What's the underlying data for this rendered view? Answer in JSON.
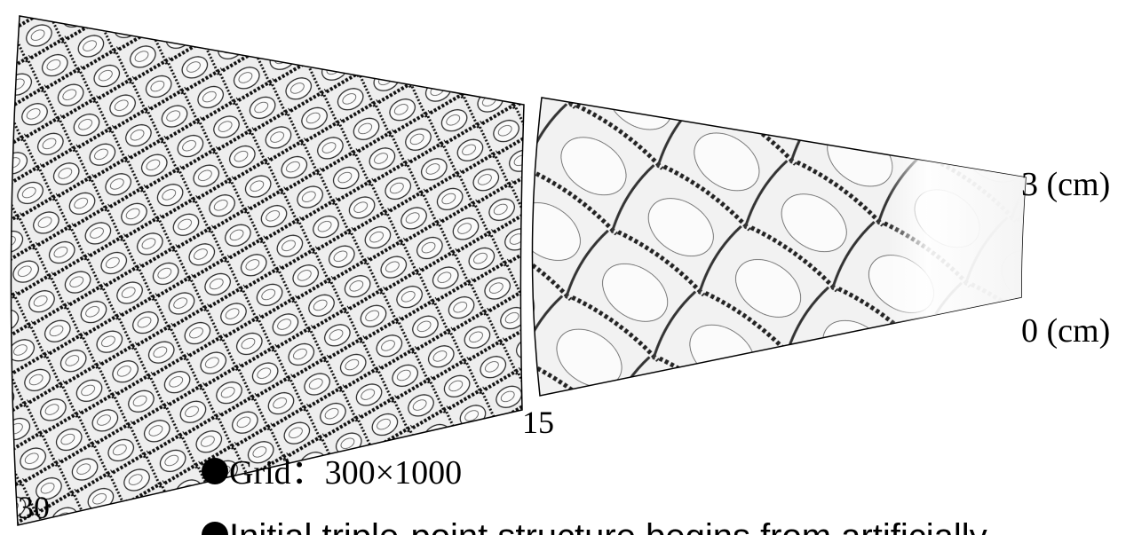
{
  "labels": {
    "top": "3 (cm)",
    "bottom": "0 (cm)",
    "mark_15": "15",
    "mark_30": "30"
  },
  "bullets": [
    "Grid：300×1000",
    "Initial triple-point structure begins from artificially"
  ]
}
